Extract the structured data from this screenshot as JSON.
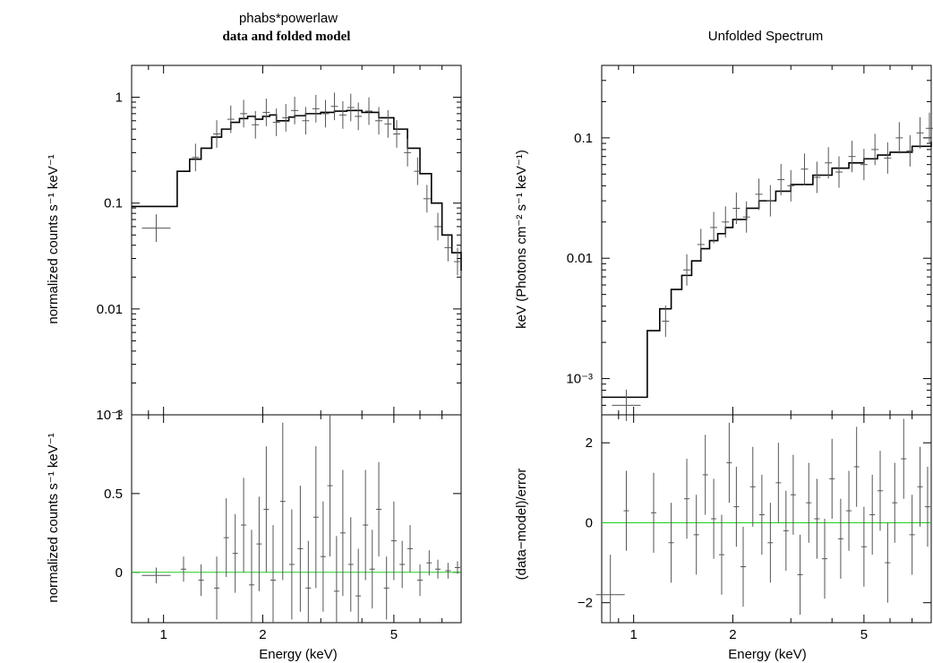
{
  "left": {
    "title": "phabs*powerlaw",
    "subtitle": "data and folded model",
    "top_ylabel": "normalized counts s⁻¹ keV⁻¹",
    "bottom_ylabel": "normalized counts s⁻¹ keV⁻¹",
    "xlabel": "Energy (keV)"
  },
  "right": {
    "title": "Unfolded Spectrum",
    "top_ylabel": "keV (Photons cm⁻² s⁻¹ keV⁻¹)",
    "bottom_ylabel": "(data−model)/error",
    "xlabel": "Energy (keV)"
  },
  "colors": {
    "data": "#555555",
    "model": "#000000",
    "zero_line": "#22cc22",
    "axes": "#000000"
  },
  "chart_data": [
    {
      "type": "line",
      "panel": "left-top",
      "title": "phabs*powerlaw",
      "subtitle": "data and folded model",
      "xlabel": "",
      "ylabel": "normalized counts s⁻¹ keV⁻¹",
      "xscale": "log",
      "yscale": "log",
      "xlim": [
        0.8,
        8.0
      ],
      "ylim": [
        0.001,
        2.0
      ],
      "x_ticks": [
        1,
        2,
        5
      ],
      "y_ticks": [
        {
          "v": 1,
          "label": "1"
        },
        {
          "v": 0.1,
          "label": "0.1"
        },
        {
          "v": 0.01,
          "label": "0.01"
        },
        {
          "v": 0.001,
          "label": "10⁻³"
        }
      ],
      "series": [
        {
          "role": "model",
          "x": [
            0.8,
            1.05,
            1.1,
            1.2,
            1.3,
            1.4,
            1.5,
            1.6,
            1.7,
            1.8,
            1.9,
            2.0,
            2.1,
            2.2,
            2.3,
            2.4,
            2.5,
            2.7,
            3.0,
            3.3,
            3.6,
            4.0,
            4.5,
            5.0,
            5.5,
            6.0,
            6.5,
            7.0,
            7.5,
            8.0
          ],
          "y": [
            0.093,
            0.093,
            0.2,
            0.26,
            0.33,
            0.42,
            0.5,
            0.58,
            0.63,
            0.66,
            0.62,
            0.66,
            0.68,
            0.6,
            0.6,
            0.65,
            0.67,
            0.7,
            0.72,
            0.74,
            0.75,
            0.72,
            0.64,
            0.5,
            0.33,
            0.19,
            0.1,
            0.05,
            0.034,
            0.023
          ]
        },
        {
          "role": "data",
          "x": [
            0.95,
            1.25,
            1.45,
            1.6,
            1.75,
            1.9,
            2.05,
            2.2,
            2.35,
            2.5,
            2.7,
            2.9,
            3.1,
            3.3,
            3.5,
            3.7,
            3.9,
            4.2,
            4.5,
            4.8,
            5.1,
            5.5,
            5.9,
            6.3,
            6.8,
            7.3,
            7.8
          ],
          "y": [
            0.058,
            0.27,
            0.45,
            0.62,
            0.7,
            0.55,
            0.72,
            0.58,
            0.64,
            0.75,
            0.6,
            0.78,
            0.7,
            0.82,
            0.68,
            0.8,
            0.66,
            0.74,
            0.6,
            0.56,
            0.45,
            0.3,
            0.2,
            0.11,
            0.06,
            0.038,
            0.028
          ]
        }
      ]
    },
    {
      "type": "scatter",
      "panel": "left-bottom",
      "xlabel": "Energy (keV)",
      "ylabel": "normalized counts s⁻¹ keV⁻¹",
      "xscale": "log",
      "xlim": [
        0.8,
        8.0
      ],
      "ylim": [
        -0.32,
        1.0
      ],
      "x_ticks": [
        1,
        2,
        5
      ],
      "y_ticks": [
        {
          "v": 1,
          "label": "1"
        },
        {
          "v": 0.5,
          "label": "0.5"
        },
        {
          "v": 0,
          "label": "0"
        }
      ],
      "zero_line": 0,
      "series": [
        {
          "role": "residual",
          "x": [
            0.95,
            1.15,
            1.3,
            1.45,
            1.55,
            1.65,
            1.75,
            1.85,
            1.95,
            2.05,
            2.15,
            2.3,
            2.45,
            2.6,
            2.75,
            2.9,
            3.05,
            3.2,
            3.35,
            3.5,
            3.7,
            3.9,
            4.1,
            4.3,
            4.5,
            4.75,
            5.0,
            5.3,
            5.6,
            6.0,
            6.4,
            6.8,
            7.3,
            7.8
          ],
          "y": [
            -0.02,
            0.02,
            -0.05,
            -0.1,
            0.22,
            0.12,
            0.3,
            -0.08,
            0.18,
            0.4,
            -0.05,
            0.45,
            0.05,
            0.15,
            -0.1,
            0.35,
            0.1,
            0.55,
            -0.12,
            0.25,
            0.05,
            -0.15,
            0.3,
            0.02,
            0.4,
            -0.1,
            0.2,
            0.05,
            0.15,
            -0.05,
            0.06,
            0.02,
            0.01,
            0.03
          ],
          "err": [
            0.05,
            0.08,
            0.1,
            0.2,
            0.25,
            0.25,
            0.3,
            0.35,
            0.3,
            0.4,
            0.35,
            0.5,
            0.35,
            0.4,
            0.3,
            0.45,
            0.35,
            0.45,
            0.35,
            0.4,
            0.3,
            0.3,
            0.35,
            0.25,
            0.3,
            0.2,
            0.25,
            0.15,
            0.15,
            0.1,
            0.08,
            0.06,
            0.05,
            0.04
          ]
        }
      ]
    },
    {
      "type": "line",
      "panel": "right-top",
      "title": "Unfolded Spectrum",
      "xlabel": "",
      "ylabel": "keV (Photons cm⁻² s⁻¹ keV⁻¹)",
      "xscale": "log",
      "yscale": "log",
      "xlim": [
        0.8,
        8.0
      ],
      "ylim": [
        0.0005,
        0.4
      ],
      "x_ticks": [
        1,
        2,
        5
      ],
      "y_ticks": [
        {
          "v": 0.1,
          "label": "0.1"
        },
        {
          "v": 0.01,
          "label": "0.01"
        },
        {
          "v": 0.001,
          "label": "10⁻³"
        }
      ],
      "series": [
        {
          "role": "model",
          "x": [
            0.8,
            1.05,
            1.1,
            1.2,
            1.3,
            1.4,
            1.5,
            1.6,
            1.7,
            1.8,
            1.9,
            2.0,
            2.2,
            2.4,
            2.7,
            3.0,
            3.5,
            4.0,
            4.5,
            5.0,
            5.5,
            6.0,
            7.0,
            8.0
          ],
          "y": [
            0.0007,
            0.0007,
            0.0025,
            0.0038,
            0.0055,
            0.0072,
            0.0095,
            0.012,
            0.014,
            0.016,
            0.018,
            0.021,
            0.026,
            0.03,
            0.036,
            0.041,
            0.049,
            0.056,
            0.062,
            0.067,
            0.072,
            0.076,
            0.085,
            0.093
          ]
        },
        {
          "role": "data",
          "x": [
            0.95,
            1.25,
            1.45,
            1.6,
            1.75,
            1.9,
            2.05,
            2.2,
            2.4,
            2.6,
            2.8,
            3.0,
            3.3,
            3.6,
            3.9,
            4.2,
            4.6,
            5.0,
            5.4,
            5.9,
            6.4,
            6.9,
            7.4,
            7.9
          ],
          "y": [
            0.0006,
            0.003,
            0.008,
            0.013,
            0.018,
            0.02,
            0.026,
            0.022,
            0.034,
            0.03,
            0.045,
            0.04,
            0.055,
            0.047,
            0.062,
            0.052,
            0.07,
            0.06,
            0.08,
            0.068,
            0.1,
            0.078,
            0.11,
            0.12
          ]
        }
      ]
    },
    {
      "type": "scatter",
      "panel": "right-bottom",
      "xlabel": "Energy (keV)",
      "ylabel": "(data−model)/error",
      "xscale": "log",
      "xlim": [
        0.8,
        8.0
      ],
      "ylim": [
        -2.5,
        2.7
      ],
      "x_ticks": [
        1,
        2,
        5
      ],
      "y_ticks": [
        {
          "v": 2,
          "label": "2"
        },
        {
          "v": 0,
          "label": "0"
        },
        {
          "v": -2,
          "label": "−2"
        }
      ],
      "zero_line": 0,
      "series": [
        {
          "role": "residual",
          "x": [
            0.85,
            0.95,
            1.15,
            1.3,
            1.45,
            1.55,
            1.65,
            1.75,
            1.85,
            1.95,
            2.05,
            2.15,
            2.3,
            2.45,
            2.6,
            2.75,
            2.9,
            3.05,
            3.2,
            3.4,
            3.6,
            3.8,
            4.0,
            4.25,
            4.5,
            4.75,
            5.0,
            5.3,
            5.6,
            5.9,
            6.2,
            6.6,
            7.0,
            7.4,
            7.8
          ],
          "y": [
            -1.8,
            0.3,
            0.25,
            -0.5,
            0.6,
            -0.3,
            1.2,
            0.1,
            -0.8,
            1.5,
            0.4,
            -1.1,
            0.9,
            0.2,
            -0.5,
            1.0,
            -0.2,
            0.7,
            -1.3,
            0.5,
            0.1,
            -0.9,
            1.1,
            -0.4,
            0.3,
            1.4,
            -0.6,
            0.2,
            0.8,
            -1.0,
            0.5,
            1.6,
            -0.3,
            0.9,
            0.4
          ],
          "err": [
            1.0,
            1.0,
            1.0,
            1.0,
            1.0,
            1.0,
            1.0,
            1.0,
            1.0,
            1.0,
            1.0,
            1.0,
            1.0,
            1.0,
            1.0,
            1.0,
            1.0,
            1.0,
            1.0,
            1.0,
            1.0,
            1.0,
            1.0,
            1.0,
            1.0,
            1.0,
            1.0,
            1.0,
            1.0,
            1.0,
            1.0,
            1.0,
            1.0,
            1.0,
            1.0
          ]
        }
      ]
    }
  ]
}
